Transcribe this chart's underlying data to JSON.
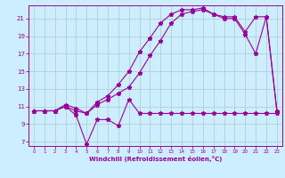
{
  "title": "",
  "xlabel": "Windchill (Refroidissement éolien,°C)",
  "bg_color": "#cceeff",
  "grid_color": "#aacccc",
  "line_color": "#990099",
  "xlim": [
    -0.5,
    23.5
  ],
  "ylim": [
    6.5,
    22.5
  ],
  "yticks": [
    7,
    9,
    11,
    13,
    15,
    17,
    19,
    21
  ],
  "xticks": [
    0,
    1,
    2,
    3,
    4,
    5,
    6,
    7,
    8,
    9,
    10,
    11,
    12,
    13,
    14,
    15,
    16,
    17,
    18,
    19,
    20,
    21,
    22,
    23
  ],
  "series1_x": [
    0,
    1,
    2,
    3,
    4,
    5,
    6,
    7,
    8,
    9,
    10,
    11,
    12,
    13,
    14,
    15,
    16,
    17,
    18,
    19,
    20,
    21,
    22,
    23
  ],
  "series1_y": [
    10.5,
    10.5,
    10.5,
    11.0,
    10.0,
    6.7,
    9.5,
    9.5,
    8.8,
    11.8,
    10.2,
    10.2,
    10.2,
    10.2,
    10.2,
    10.2,
    10.2,
    10.2,
    10.2,
    10.2,
    10.2,
    10.2,
    10.2,
    10.2
  ],
  "series2_x": [
    0,
    1,
    2,
    3,
    4,
    5,
    6,
    7,
    8,
    9,
    10,
    11,
    12,
    13,
    14,
    15,
    16,
    17,
    18,
    19,
    20,
    21,
    22,
    23
  ],
  "series2_y": [
    10.5,
    10.5,
    10.5,
    11.0,
    10.5,
    10.2,
    11.2,
    11.8,
    12.5,
    13.2,
    14.8,
    16.8,
    18.5,
    20.5,
    21.5,
    21.8,
    22.0,
    21.5,
    21.2,
    21.2,
    19.5,
    21.2,
    21.2,
    10.5
  ],
  "series3_x": [
    0,
    1,
    2,
    3,
    4,
    5,
    6,
    7,
    8,
    9,
    10,
    11,
    12,
    13,
    14,
    15,
    16,
    17,
    18,
    19,
    20,
    21,
    22,
    23
  ],
  "series3_y": [
    10.5,
    10.5,
    10.5,
    11.2,
    10.8,
    10.2,
    11.5,
    12.2,
    13.5,
    15.0,
    17.2,
    18.8,
    20.5,
    21.5,
    22.0,
    22.0,
    22.2,
    21.5,
    21.0,
    21.0,
    19.2,
    17.0,
    21.2,
    10.5
  ]
}
